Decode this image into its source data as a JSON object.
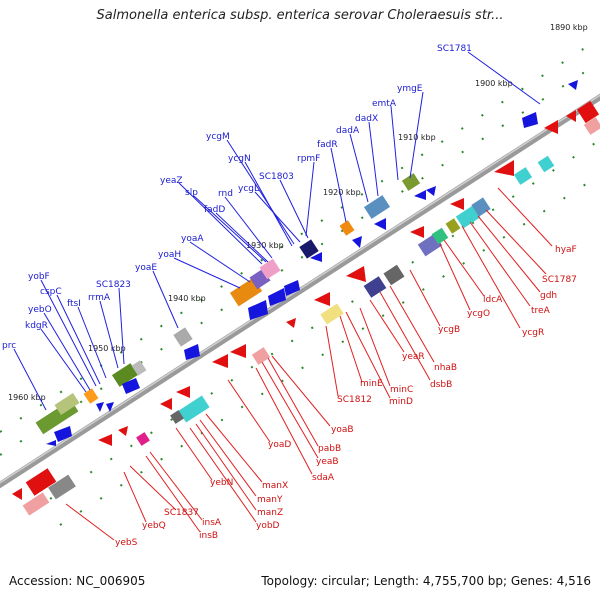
{
  "title": "Salmonella enterica subsp. enterica serovar Choleraesuis str...",
  "footer": {
    "accession": "Accession: NC_006905",
    "summary": "Topology: circular; Length: 4,755,700 bp; Genes: 4,516"
  },
  "ticks": [
    "1890 kbp",
    "1900 kbp",
    "1910 kbp",
    "1920 kbp",
    "1930 kbp",
    "1940 kbp",
    "1950 kbp",
    "1960 kbp"
  ],
  "genes_forward": [
    "SC1781",
    "ymgE",
    "emtA",
    "dadX",
    "dadA",
    "fadR",
    "rpmF",
    "SC1803",
    "ycgL",
    "ycgN",
    "ycgM",
    "yeaZ",
    "slp",
    "rnd",
    "fadD",
    "yoaA",
    "yoaH",
    "yoaE",
    "SC1823",
    "rrmA",
    "ftsI",
    "cspC",
    "yobF",
    "yebO",
    "kdgR",
    "prc"
  ],
  "genes_reverse": [
    "hyaF",
    "SC1787",
    "gdh",
    "treA",
    "ycgR",
    "ldcA",
    "ycgO",
    "ycgB",
    "nhaB",
    "dsbB",
    "yeaR",
    "minC",
    "minD",
    "minE",
    "SC1812",
    "yoaB",
    "yeaB",
    "pabB",
    "sdaA",
    "yoaD",
    "manX",
    "manY",
    "manZ",
    "yobD",
    "yebN",
    "insA",
    "insB",
    "SC1837",
    "yebQ",
    "yebS"
  ],
  "colors": {
    "forward": "#1010cc",
    "reverse": "#dd1111",
    "backbone": "#808080",
    "tick": "#2a8a2a"
  }
}
